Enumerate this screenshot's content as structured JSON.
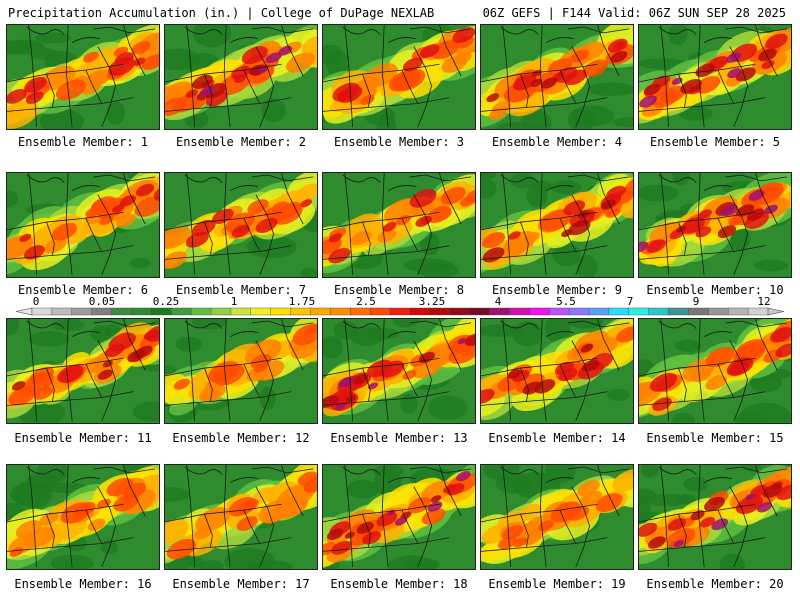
{
  "header": {
    "title": "Precipitation Accumulation (in.) | College of DuPage NEXLAB",
    "run_info": "06Z GEFS | F144 Valid: 06Z SUN SEP 28 2025"
  },
  "legend": {
    "tick_labels": [
      "0",
      "0.05",
      "0.25",
      "1",
      "1.75",
      "2.5",
      "3.25",
      "4",
      "5.5",
      "7",
      "9",
      "12"
    ],
    "colors": [
      "#d9d9d9",
      "#bdbdbd",
      "#9c9c9c",
      "#7f7f7f",
      "#3c8c3c",
      "#2e8b2e",
      "#1f7a1f",
      "#3f9f3f",
      "#5fbf3f",
      "#8fd13f",
      "#c8e63c",
      "#f0f01e",
      "#ffe000",
      "#ffc400",
      "#ffa800",
      "#ff8c00",
      "#ff6e00",
      "#ff4a00",
      "#f02010",
      "#d40a0a",
      "#b40a0a",
      "#960a14",
      "#7a0a28",
      "#a0106e",
      "#d010b0",
      "#f010f0",
      "#c050ff",
      "#8c78ff",
      "#5aa0ff",
      "#28dcff",
      "#28f0e6",
      "#28c8c8",
      "#3c9696",
      "#787878",
      "#969696",
      "#b4b4b4",
      "#d2d2d2"
    ]
  },
  "panels": [
    {
      "caption": "Ensemble Member: 1",
      "seed": 11,
      "intensity": 0.62
    },
    {
      "caption": "Ensemble Member: 2",
      "seed": 23,
      "intensity": 0.92
    },
    {
      "caption": "Ensemble Member: 3",
      "seed": 37,
      "intensity": 0.58
    },
    {
      "caption": "Ensemble Member: 4",
      "seed": 41,
      "intensity": 0.74
    },
    {
      "caption": "Ensemble Member: 5",
      "seed": 53,
      "intensity": 0.85
    },
    {
      "caption": "Ensemble Member: 6",
      "seed": 67,
      "intensity": 0.64
    },
    {
      "caption": "Ensemble Member: 7",
      "seed": 71,
      "intensity": 0.66
    },
    {
      "caption": "Ensemble Member: 8",
      "seed": 83,
      "intensity": 0.68
    },
    {
      "caption": "Ensemble Member: 9",
      "seed": 97,
      "intensity": 0.7
    },
    {
      "caption": "Ensemble Member: 10",
      "seed": 101,
      "intensity": 0.9
    },
    {
      "caption": "Ensemble Member: 11",
      "seed": 113,
      "intensity": 0.8
    },
    {
      "caption": "Ensemble Member: 12",
      "seed": 127,
      "intensity": 0.55
    },
    {
      "caption": "Ensemble Member: 13",
      "seed": 131,
      "intensity": 0.88
    },
    {
      "caption": "Ensemble Member: 14",
      "seed": 149,
      "intensity": 0.78
    },
    {
      "caption": "Ensemble Member: 15",
      "seed": 151,
      "intensity": 0.6
    },
    {
      "caption": "Ensemble Member: 16",
      "seed": 163,
      "intensity": 0.5
    },
    {
      "caption": "Ensemble Member: 17",
      "seed": 173,
      "intensity": 0.45
    },
    {
      "caption": "Ensemble Member: 18",
      "seed": 181,
      "intensity": 0.86
    },
    {
      "caption": "Ensemble Member: 19",
      "seed": 191,
      "intensity": 0.52
    },
    {
      "caption": "Ensemble Member: 20",
      "seed": 199,
      "intensity": 0.9
    }
  ]
}
